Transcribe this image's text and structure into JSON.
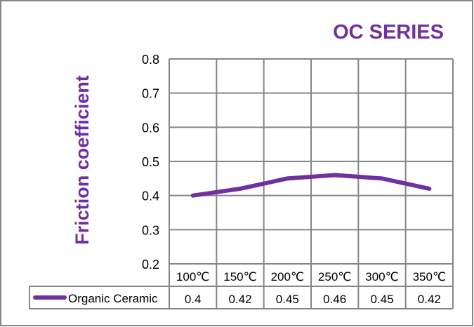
{
  "chart_data": {
    "type": "line",
    "title": "OC SERIES",
    "xlabel": "",
    "ylabel": "Friction coefficient",
    "categories": [
      "100℃",
      "150℃",
      "200℃",
      "250℃",
      "300℃",
      "350℃"
    ],
    "series": [
      {
        "name": "Organic Ceramic",
        "values": [
          0.4,
          0.42,
          0.45,
          0.46,
          0.45,
          0.42
        ],
        "value_labels": [
          "0.4",
          "0.42",
          "0.45",
          "0.46",
          "0.45",
          "0.42"
        ]
      }
    ],
    "ylim": [
      0.2,
      0.8
    ],
    "yticks": [
      "0.2",
      "0.3",
      "0.4",
      "0.5",
      "0.6",
      "0.7",
      "0.8"
    ],
    "grid": true,
    "legend": "data-table",
    "colors": {
      "series": "#7030A0",
      "title": "#7030A0",
      "grid": "#868686",
      "border": "#868686"
    }
  }
}
